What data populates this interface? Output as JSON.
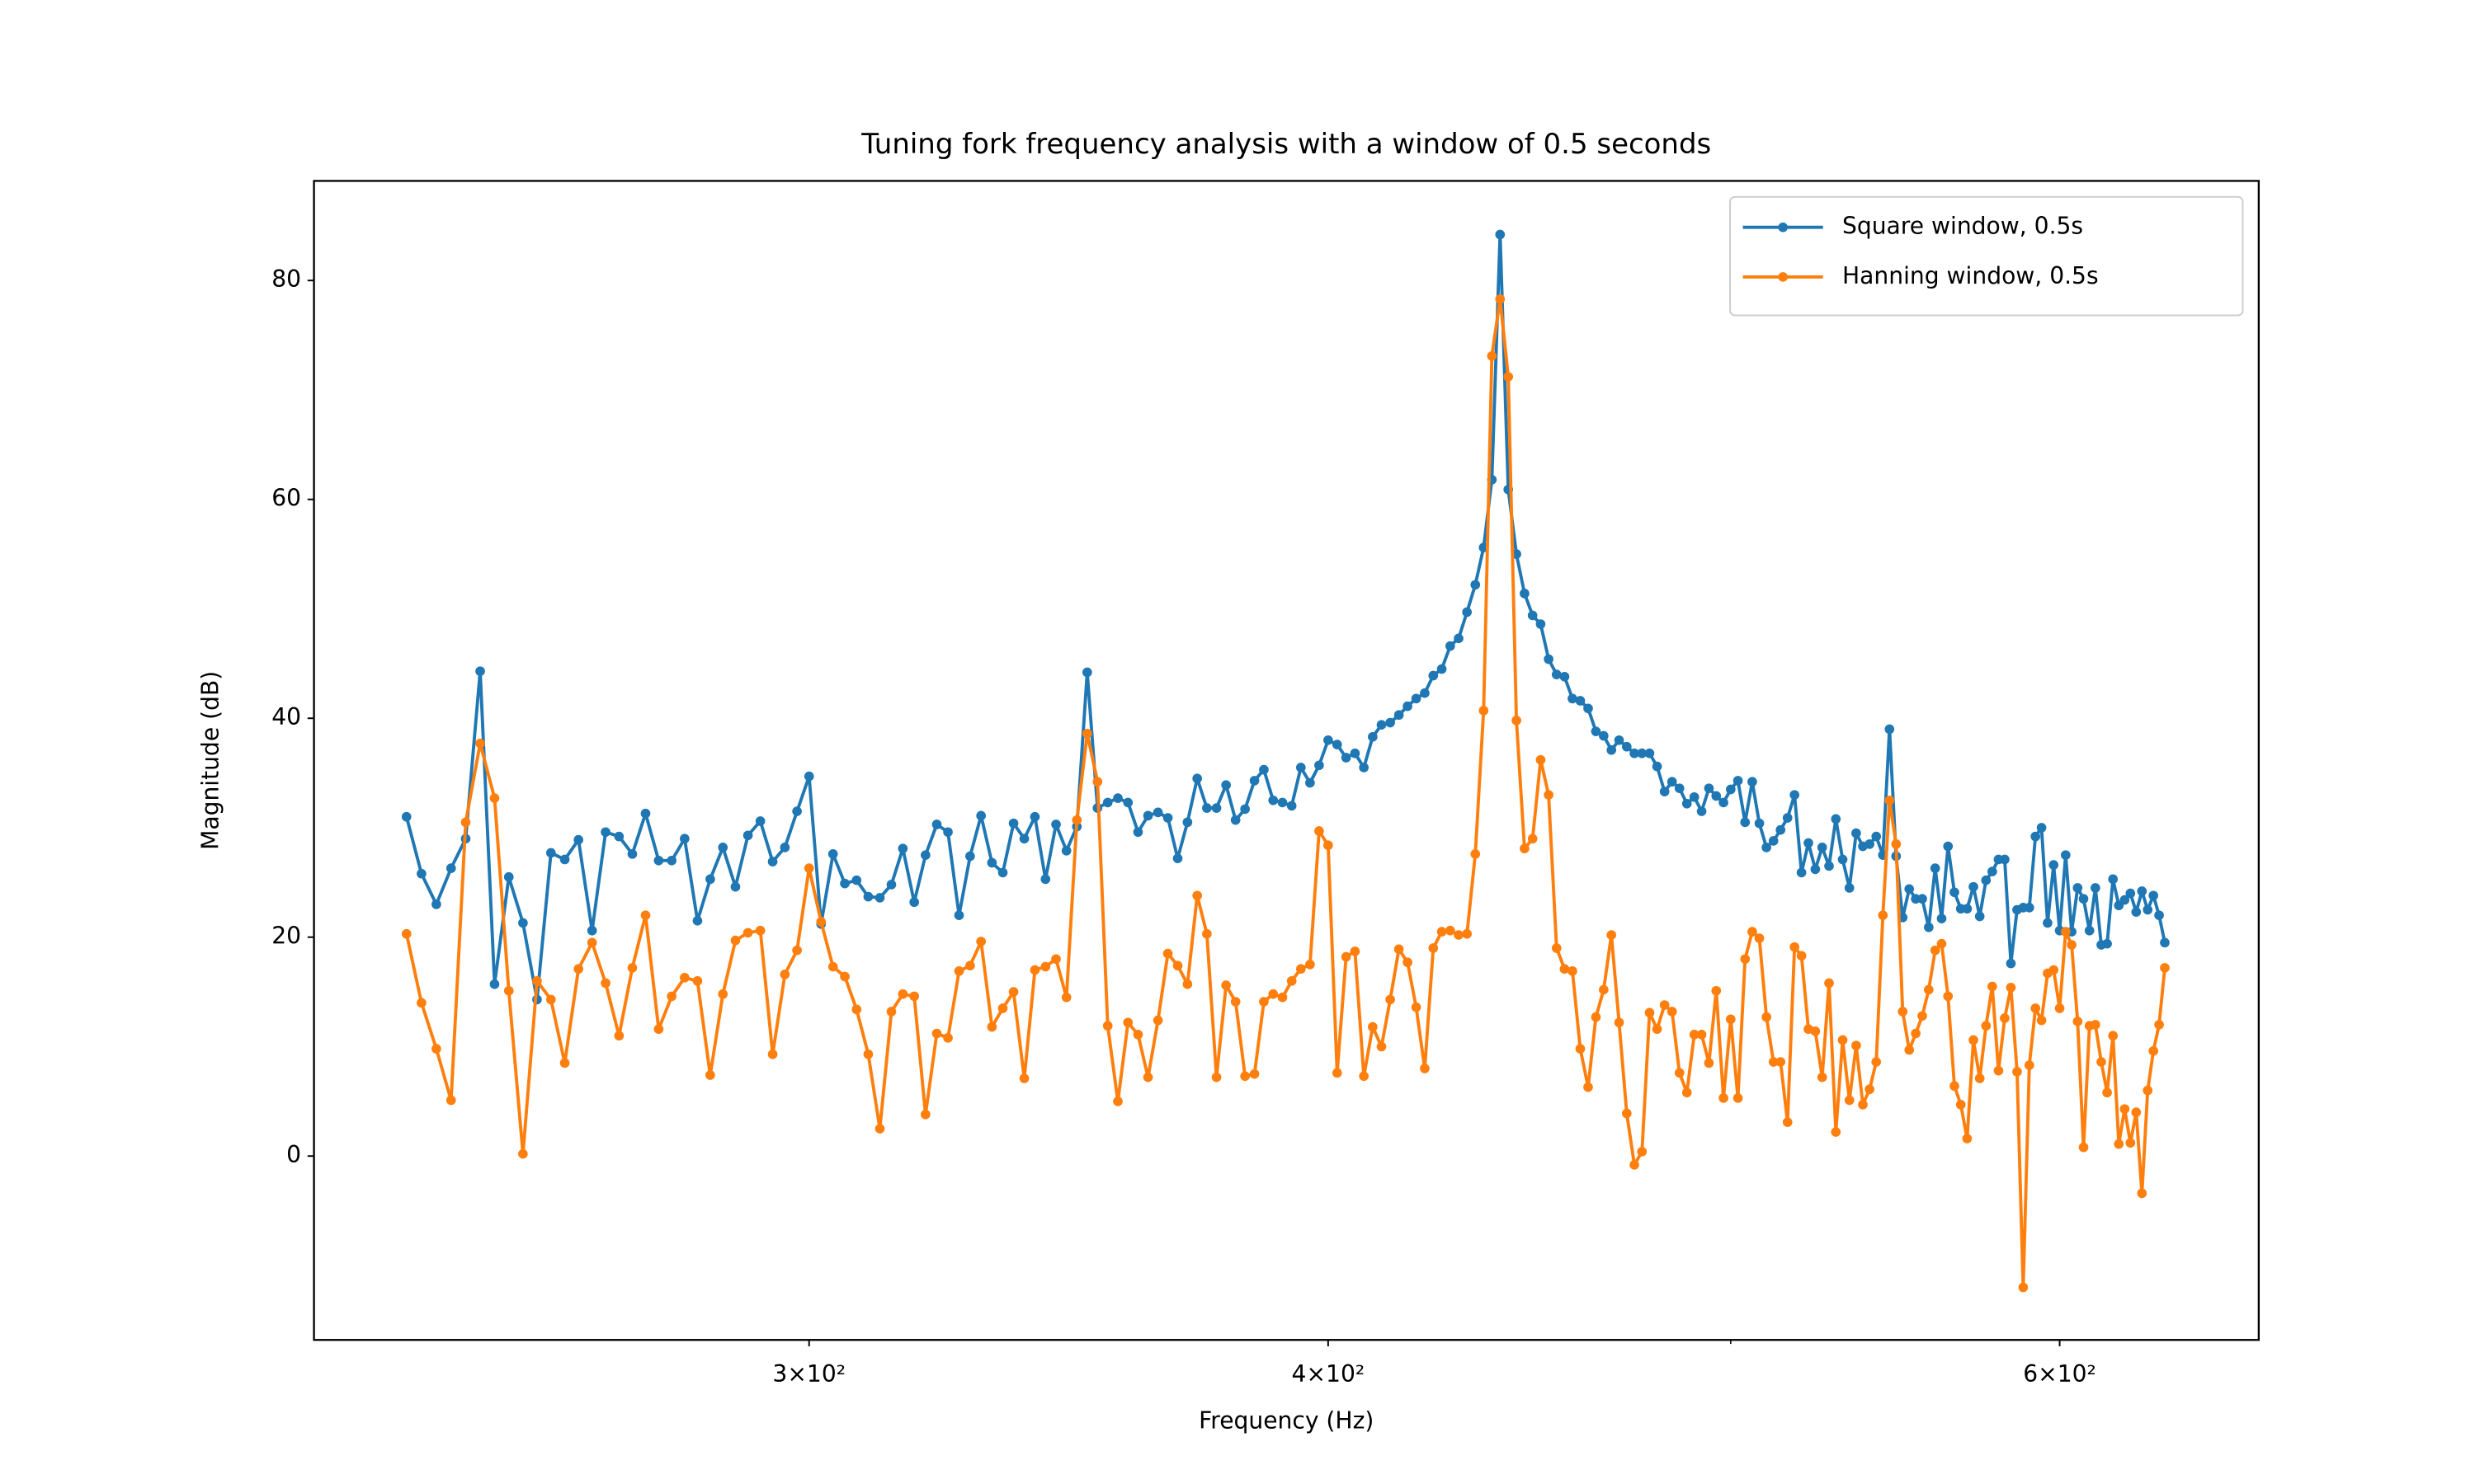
{
  "chart_data": {
    "type": "line",
    "title": "Tuning fork frequency analysis with a window of 0.5 seconds",
    "x_label": "Frequency (Hz)",
    "y_label": "Magnitude (dB)",
    "xscale": "log",
    "legend": "upper right",
    "xlim": [
      228,
      670
    ],
    "ylim": [
      -16.8,
      89.1
    ],
    "xticks": [
      {
        "value": 300,
        "label": "3×10²"
      },
      {
        "value": 400,
        "label": "4×10²"
      },
      {
        "value": 600,
        "label": "6×10²"
      }
    ],
    "xminorticks": [
      500
    ],
    "yticks": [
      0,
      20,
      40,
      60,
      80
    ],
    "x": [
      240,
      242,
      244,
      246,
      248,
      250,
      252,
      254,
      256,
      258,
      260,
      262,
      264,
      266,
      268,
      270,
      272,
      274,
      276,
      278,
      280,
      282,
      284,
      286,
      288,
      290,
      292,
      294,
      296,
      298,
      300,
      302,
      304,
      306,
      308,
      310,
      312,
      314,
      316,
      318,
      320,
      322,
      324,
      326,
      328,
      330,
      332,
      334,
      336,
      338,
      340,
      342,
      344,
      346,
      348,
      350,
      352,
      354,
      356,
      358,
      360,
      362,
      364,
      366,
      368,
      370,
      372,
      374,
      376,
      378,
      380,
      382,
      384,
      386,
      388,
      390,
      392,
      394,
      396,
      398,
      400,
      402,
      404,
      406,
      408,
      410,
      412,
      414,
      416,
      418,
      420,
      422,
      424,
      426,
      428,
      430,
      432,
      434,
      436,
      438,
      440,
      442,
      444,
      446,
      448,
      450,
      452,
      454,
      456,
      458,
      460,
      462,
      464,
      466,
      468,
      470,
      472,
      474,
      476,
      478,
      480,
      482,
      484,
      486,
      488,
      490,
      492,
      494,
      496,
      498,
      500,
      502,
      504,
      506,
      508,
      510,
      512,
      514,
      516,
      518,
      520,
      522,
      524,
      526,
      528,
      530,
      532,
      534,
      536,
      538,
      540,
      542,
      544,
      546,
      548,
      550,
      552,
      554,
      556,
      558,
      560,
      562,
      564,
      566,
      568,
      570,
      572,
      574,
      576,
      578,
      580,
      582,
      584,
      586,
      588,
      590,
      592,
      594,
      596,
      598,
      600,
      602,
      604,
      606,
      608,
      610,
      612,
      614,
      616,
      618,
      620,
      622,
      624,
      626,
      628,
      630,
      632,
      634,
      636
    ],
    "series": [
      {
        "name": "Square window, 0.5s",
        "color": "#1f77b4",
        "values": [
          31,
          25.8,
          23,
          26.3,
          29,
          44.3,
          15.7,
          25.5,
          21.3,
          14.3,
          27.7,
          27.1,
          28.9,
          20.6,
          29.6,
          29.2,
          27.6,
          31.3,
          27,
          27,
          29,
          21.5,
          25.3,
          28.2,
          24.6,
          29.3,
          30.6,
          26.9,
          28.2,
          31.5,
          34.7,
          21.2,
          27.6,
          24.9,
          25.2,
          23.7,
          23.6,
          24.8,
          28.1,
          23.2,
          27.5,
          30.3,
          29.6,
          22,
          27.4,
          31.1,
          26.8,
          25.9,
          30.4,
          29,
          31,
          25.3,
          30.3,
          27.9,
          30.1,
          44.2,
          31.8,
          32.3,
          32.7,
          32.3,
          29.6,
          31.1,
          31.4,
          30.9,
          27.2,
          30.5,
          34.5,
          31.8,
          31.8,
          33.9,
          30.7,
          31.7,
          34.3,
          35.3,
          32.5,
          32.3,
          32,
          35.5,
          34.1,
          35.7,
          38,
          37.6,
          36.4,
          36.8,
          35.5,
          38.3,
          39.4,
          39.6,
          40.3,
          41.1,
          41.8,
          42.3,
          43.9,
          44.5,
          46.6,
          47.3,
          49.7,
          52.2,
          55.6,
          61.8,
          84.2,
          60.9,
          55,
          51.4,
          49.4,
          48.6,
          45.4,
          44,
          43.8,
          41.8,
          41.6,
          40.9,
          38.8,
          38.4,
          37.1,
          38,
          37.4,
          36.8,
          36.8,
          36.8,
          35.6,
          33.3,
          34.2,
          33.6,
          32.2,
          32.8,
          31.5,
          33.6,
          32.9,
          32.3,
          33.5,
          34.3,
          30.5,
          34.2,
          30.4,
          28.2,
          28.8,
          29.8,
          30.9,
          33,
          25.9,
          28.6,
          26.2,
          28.2,
          26.5,
          30.8,
          27.1,
          24.5,
          29.5,
          28.3,
          28.5,
          29.2,
          27.5,
          39,
          27.4,
          21.8,
          24.4,
          23.5,
          23.5,
          20.9,
          26.3,
          21.7,
          28.3,
          24.1,
          22.6,
          22.6,
          24.6,
          21.9,
          25.2,
          26,
          27.1,
          27.1,
          17.6,
          22.5,
          22.7,
          22.7,
          29.2,
          30,
          21.3,
          26.6,
          20.6,
          27.5,
          20.5,
          24.5,
          23.5,
          20.6,
          24.5,
          19.3,
          19.4,
          25.3,
          22.9,
          23.4,
          24,
          22.3,
          24.2,
          22.5,
          23.8,
          22,
          19.5
        ]
      },
      {
        "name": "Hanning window, 0.5s",
        "color": "#ff7f0e",
        "values": [
          20.3,
          14,
          9.8,
          5.1,
          30.5,
          37.7,
          32.7,
          15.1,
          0.2,
          16,
          14.3,
          8.5,
          17.1,
          19.5,
          15.8,
          11,
          17.2,
          22,
          11.6,
          14.6,
          16.3,
          16,
          7.4,
          14.8,
          19.7,
          20.4,
          20.6,
          9.3,
          16.6,
          18.8,
          26.3,
          21.4,
          17.3,
          16.4,
          13.4,
          9.3,
          2.5,
          13.2,
          14.8,
          14.6,
          3.8,
          11.2,
          10.8,
          16.9,
          17.4,
          19.6,
          11.8,
          13.5,
          15,
          7.1,
          17,
          17.3,
          18,
          14.5,
          30.7,
          38.6,
          34.2,
          11.9,
          5,
          12.2,
          11.1,
          7.2,
          12.4,
          18.5,
          17.4,
          15.7,
          23.8,
          20.3,
          7.2,
          15.6,
          14.1,
          7.3,
          7.5,
          14.1,
          14.8,
          14.5,
          16,
          17.1,
          17.5,
          29.7,
          28.4,
          7.6,
          18.2,
          18.7,
          7.3,
          11.8,
          10,
          14.3,
          18.9,
          17.7,
          13.6,
          8,
          19,
          20.5,
          20.6,
          20.2,
          20.3,
          27.6,
          40.7,
          73.1,
          78.3,
          71.2,
          39.8,
          28.1,
          29,
          36.2,
          33,
          19,
          17.1,
          16.9,
          9.8,
          6.3,
          12.7,
          15.2,
          20.2,
          12.2,
          3.9,
          -0.8,
          0.4,
          13.1,
          11.6,
          13.8,
          13.2,
          7.6,
          5.8,
          11.1,
          11.1,
          8.5,
          15.1,
          5.3,
          12.5,
          5.3,
          18,
          20.5,
          19.9,
          12.7,
          8.6,
          8.6,
          3.1,
          19.1,
          18.3,
          11.6,
          11.4,
          7.2,
          15.8,
          2.2,
          10.6,
          5.1,
          10.1,
          4.7,
          6.1,
          8.6,
          22,
          32.5,
          28.5,
          13.2,
          9.7,
          11.2,
          12.8,
          15.2,
          18.8,
          19.4,
          14.6,
          6.4,
          4.7,
          1.6,
          10.6,
          7.1,
          11.9,
          15.5,
          7.8,
          12.6,
          15.4,
          7.7,
          -12,
          8.3,
          13.5,
          12.4,
          16.7,
          17,
          13.5,
          20.5,
          19.3,
          12.3,
          0.8,
          11.9,
          12,
          8.6,
          5.8,
          11,
          1.1,
          4.3,
          1.2,
          4,
          -3.4,
          6,
          9.6,
          12,
          17.2
        ]
      }
    ]
  }
}
